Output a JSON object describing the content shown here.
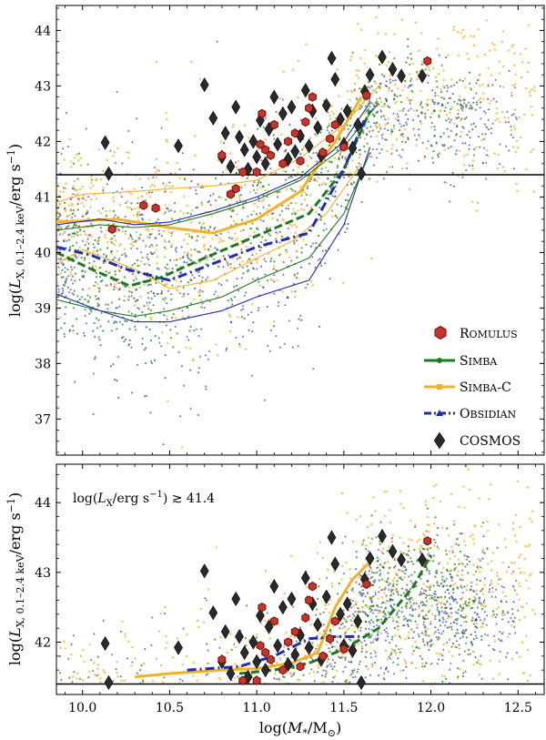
{
  "colors": {
    "romulus": "#c8332b",
    "romulus_edge": "#6a0f0a",
    "simba": "#1e7a1e",
    "simbac": "#f2b227",
    "obsidian": "#1f2db0",
    "cosmos": "#2a2a2a",
    "threshold": "#000000"
  },
  "x_axis": {
    "label": "log(M*/M⊙)",
    "ticks": [
      "10.0",
      "10.5",
      "11.0",
      "11.5",
      "12.0",
      "12.5"
    ],
    "range": [
      9.85,
      12.65
    ]
  },
  "chart_data": [
    {
      "type": "scatter",
      "panel": "top",
      "ylabel": "log(L X,0.1–2.4 keV / erg s⁻¹)",
      "ylim": [
        36.35,
        44.45
      ],
      "yticks": [
        "37",
        "38",
        "39",
        "40",
        "41",
        "42",
        "43",
        "44"
      ],
      "threshold": 41.4,
      "legend": {
        "placement": "center-right",
        "entries": [
          "Romulus",
          "Simba",
          "Simba-C",
          "Obsidian",
          "COSMOS"
        ]
      },
      "series": [
        {
          "name": "Simba-C median",
          "style": "solid",
          "color_key": "simbac",
          "x": [
            9.85,
            10.2,
            10.5,
            10.75,
            11.0,
            11.25,
            11.45,
            11.6
          ],
          "y": [
            40.55,
            40.6,
            40.45,
            40.35,
            40.6,
            41.1,
            42.0,
            42.8
          ]
        },
        {
          "name": "Simba-C 16th pct",
          "style": "thin",
          "color_key": "simbac",
          "x": [
            9.85,
            10.0,
            10.3,
            10.5,
            10.75,
            11.0,
            11.2,
            11.4,
            11.6
          ],
          "y": [
            39.8,
            40.05,
            39.7,
            39.35,
            39.5,
            39.9,
            40.2,
            40.7,
            41.6
          ]
        },
        {
          "name": "Simba-C 84th pct",
          "style": "thin",
          "color_key": "simbac",
          "x": [
            9.85,
            10.0,
            10.3,
            10.5,
            10.75,
            11.0,
            11.25,
            11.5,
            11.7
          ],
          "y": [
            40.9,
            41.05,
            41.1,
            41.15,
            41.2,
            41.3,
            41.7,
            42.3,
            43.0
          ]
        },
        {
          "name": "Simba median",
          "style": "dashed",
          "color_key": "simba",
          "x": [
            9.85,
            10.05,
            10.27,
            10.45,
            10.7,
            11.0,
            11.3,
            11.5,
            11.65
          ],
          "y": [
            40.0,
            39.7,
            39.4,
            39.55,
            39.9,
            40.3,
            40.7,
            41.5,
            42.55
          ]
        },
        {
          "name": "Simba 16th pct",
          "style": "thin",
          "color_key": "simba",
          "x": [
            9.85,
            10.1,
            10.3,
            10.5,
            10.8,
            11.0,
            11.3,
            11.5,
            11.65
          ],
          "y": [
            39.15,
            38.95,
            38.85,
            38.95,
            39.2,
            39.5,
            39.9,
            40.7,
            41.8
          ]
        },
        {
          "name": "Simba 84th pct",
          "style": "thin",
          "color_key": "simba",
          "x": [
            9.85,
            10.1,
            10.3,
            10.5,
            10.75,
            11.0,
            11.25,
            11.5,
            11.7
          ],
          "y": [
            40.4,
            40.5,
            40.45,
            40.5,
            40.7,
            40.95,
            41.3,
            41.9,
            42.7
          ]
        },
        {
          "name": "Obsidian median",
          "style": "dashdot",
          "color_key": "obsidian",
          "x": [
            9.85,
            10.05,
            10.25,
            10.5,
            10.75,
            11.0,
            11.3,
            11.5,
            11.62
          ],
          "y": [
            40.1,
            39.95,
            39.7,
            39.5,
            39.8,
            40.1,
            40.35,
            41.5,
            42.4
          ]
        },
        {
          "name": "Obsidian 16th pct",
          "style": "thin",
          "color_key": "obsidian",
          "x": [
            9.85,
            10.1,
            10.3,
            10.5,
            10.8,
            11.0,
            11.3,
            11.5,
            11.65
          ],
          "y": [
            39.25,
            38.95,
            38.75,
            38.75,
            38.95,
            39.2,
            39.5,
            40.5,
            41.9
          ]
        },
        {
          "name": "Obsidian 84th pct",
          "style": "thin",
          "color_key": "obsidian",
          "x": [
            9.85,
            10.1,
            10.3,
            10.5,
            10.75,
            11.0,
            11.25,
            11.5,
            11.65
          ],
          "y": [
            40.5,
            40.6,
            40.5,
            40.55,
            40.75,
            41.0,
            41.35,
            42.0,
            42.7
          ]
        }
      ],
      "romulus_points": [
        [
          10.17,
          40.42
        ],
        [
          10.35,
          40.85
        ],
        [
          10.42,
          40.8
        ],
        [
          10.8,
          41.75
        ],
        [
          10.85,
          41.05
        ],
        [
          10.88,
          41.15
        ],
        [
          10.92,
          41.45
        ],
        [
          11.0,
          41.45
        ],
        [
          11.02,
          41.95
        ],
        [
          11.03,
          42.5
        ],
        [
          11.05,
          41.85
        ],
        [
          11.08,
          41.75
        ],
        [
          11.1,
          42.3
        ],
        [
          11.15,
          41.6
        ],
        [
          11.18,
          42.0
        ],
        [
          11.22,
          42.15
        ],
        [
          11.25,
          41.65
        ],
        [
          11.28,
          42.35
        ],
        [
          11.3,
          42.6
        ],
        [
          11.32,
          42.8
        ],
        [
          11.38,
          41.8
        ],
        [
          11.42,
          42.05
        ],
        [
          11.45,
          42.3
        ],
        [
          11.5,
          41.9
        ],
        [
          11.63,
          42.83
        ],
        [
          11.98,
          43.45
        ]
      ],
      "cosmos_points": [
        [
          10.13,
          41.98
        ],
        [
          10.15,
          41.42
        ],
        [
          10.55,
          41.92
        ],
        [
          10.7,
          43.02
        ],
        [
          10.75,
          42.42
        ],
        [
          10.8,
          41.72
        ],
        [
          10.82,
          42.15
        ],
        [
          10.85,
          41.55
        ],
        [
          10.88,
          42.62
        ],
        [
          10.9,
          42.08
        ],
        [
          10.93,
          41.85
        ],
        [
          10.95,
          41.5
        ],
        [
          10.98,
          42.0
        ],
        [
          11.0,
          41.72
        ],
        [
          11.02,
          42.38
        ],
        [
          11.05,
          41.6
        ],
        [
          11.07,
          42.22
        ],
        [
          11.1,
          42.8
        ],
        [
          11.12,
          41.95
        ],
        [
          11.15,
          42.5
        ],
        [
          11.18,
          41.68
        ],
        [
          11.2,
          42.62
        ],
        [
          11.22,
          41.82
        ],
        [
          11.25,
          42.1
        ],
        [
          11.28,
          42.92
        ],
        [
          11.3,
          41.92
        ],
        [
          11.32,
          42.55
        ],
        [
          11.35,
          42.25
        ],
        [
          11.37,
          41.75
        ],
        [
          11.4,
          42.65
        ],
        [
          11.45,
          43.12
        ],
        [
          11.48,
          42.4
        ],
        [
          11.5,
          41.95
        ],
        [
          11.52,
          42.55
        ],
        [
          11.55,
          41.88
        ],
        [
          11.58,
          42.3
        ],
        [
          11.6,
          41.42
        ],
        [
          11.62,
          42.9
        ],
        [
          11.65,
          43.2
        ],
        [
          11.72,
          43.52
        ],
        [
          11.78,
          43.3
        ],
        [
          11.83,
          43.18
        ],
        [
          11.95,
          43.18
        ],
        [
          11.43,
          43.5
        ]
      ]
    },
    {
      "type": "scatter",
      "panel": "bottom",
      "annotation": "log(L X / erg s⁻¹) ≳ 41.4",
      "ylabel": "log(L X,0.1–2.4 keV / erg s⁻¹)",
      "ylim": [
        41.25,
        44.55
      ],
      "yticks": [
        "42",
        "43",
        "44"
      ],
      "threshold": 41.4,
      "series": [
        {
          "name": "Simba-C median",
          "style": "solid",
          "color_key": "simbac",
          "x": [
            10.3,
            10.5,
            10.8,
            11.0,
            11.2,
            11.35,
            11.45,
            11.55,
            11.65
          ],
          "y": [
            41.5,
            41.55,
            41.6,
            41.62,
            41.7,
            41.85,
            42.5,
            42.9,
            43.15
          ]
        },
        {
          "name": "Simba median",
          "style": "dashed",
          "color_key": "simba",
          "x": [
            10.9,
            11.1,
            11.3,
            11.5,
            11.7,
            11.9,
            12.0
          ],
          "y": [
            41.55,
            41.6,
            41.7,
            41.9,
            42.2,
            42.8,
            43.25
          ]
        },
        {
          "name": "Obsidian median",
          "style": "dashdot",
          "color_key": "obsidian",
          "x": [
            10.6,
            10.9,
            11.1,
            11.3,
            11.45,
            11.6
          ],
          "y": [
            41.6,
            41.65,
            41.8,
            42.05,
            42.08,
            42.08
          ]
        }
      ]
    }
  ]
}
